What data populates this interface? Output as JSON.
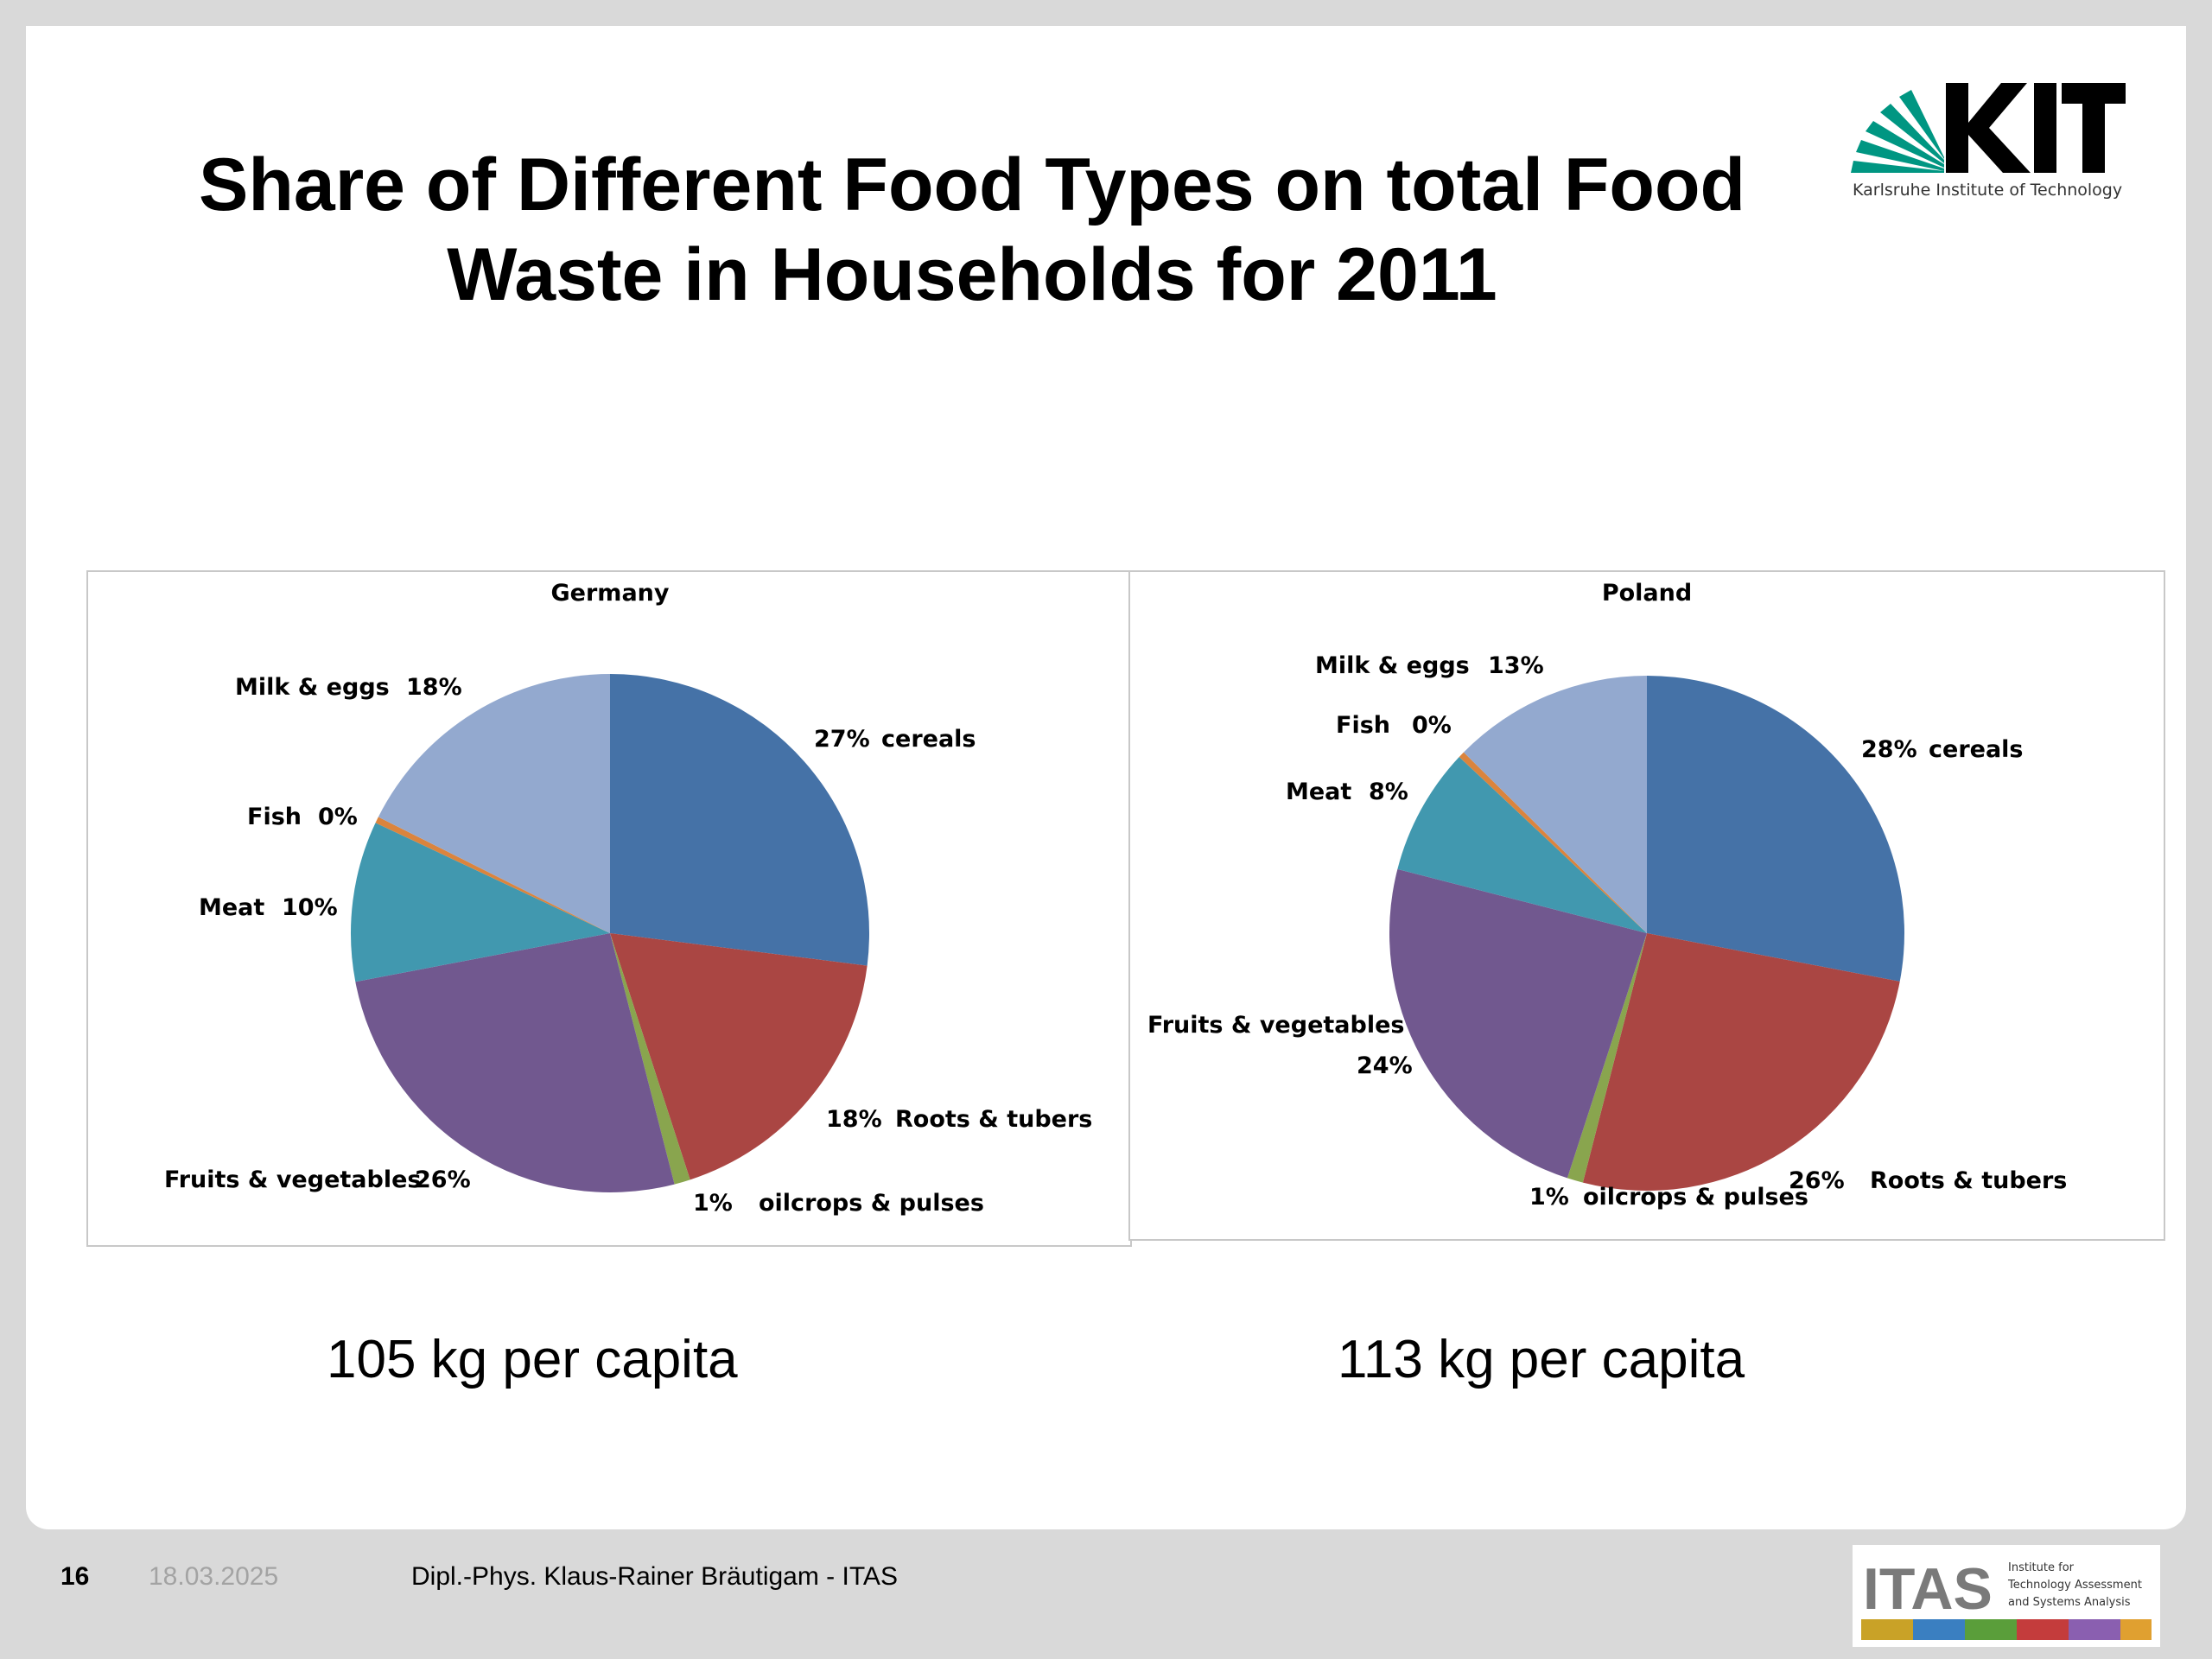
{
  "slide": {
    "title": "Share of Different Food Types on total Food\nWaste in Households for 2011",
    "kit_logo": {
      "text": "KIT",
      "subtitle": "Karlsruhe Institute of Technology",
      "color": "#009682"
    },
    "germany_per_capita": "105 kg per capita",
    "poland_per_capita": "113 kg per capita"
  },
  "footer": {
    "page_number": "16",
    "date": "18.03.2025",
    "author": "Dipl.-Phys. Klaus-Rainer Bräutigam - ITAS",
    "itas_logo": {
      "text": "ITAS",
      "line1": "Institute for",
      "line2": "Technology Assessment",
      "line3": "and Systems Analysis"
    }
  },
  "colors": {
    "cereals": "#4572a7",
    "roots": "#aa4643",
    "oilcrops": "#89a54e",
    "fruits": "#71588f",
    "meat": "#4198af",
    "fish": "#db843d",
    "milk": "#93a9cf"
  },
  "chart_data": [
    {
      "type": "pie",
      "title": "Germany",
      "slices": [
        {
          "label": "cereals",
          "pct_label": "27%",
          "value": 27
        },
        {
          "label": "Roots & tubers",
          "pct_label": "18%",
          "value": 18
        },
        {
          "label": "oilcrops & pulses",
          "pct_label": "1%",
          "value": 1
        },
        {
          "label": "Fruits & vegetables",
          "pct_label": "26%",
          "value": 26
        },
        {
          "label": "Meat",
          "pct_label": "10%",
          "value": 10
        },
        {
          "label": "Fish",
          "pct_label": "0%",
          "value": 0.4
        },
        {
          "label": "Milk & eggs",
          "pct_label": "18%",
          "value": 17.6
        }
      ]
    },
    {
      "type": "pie",
      "title": "Poland",
      "slices": [
        {
          "label": "cereals",
          "pct_label": "28%",
          "value": 28
        },
        {
          "label": "Roots & tubers",
          "pct_label": "26%",
          "value": 26
        },
        {
          "label": "oilcrops & pulses",
          "pct_label": "1%",
          "value": 1
        },
        {
          "label": "Fruits & vegetables",
          "pct_label": "24%",
          "value": 24
        },
        {
          "label": "Meat",
          "pct_label": "8%",
          "value": 8
        },
        {
          "label": "Fish",
          "pct_label": "0%",
          "value": 0.4
        },
        {
          "label": "Milk & eggs",
          "pct_label": "13%",
          "value": 12.6
        }
      ]
    }
  ]
}
